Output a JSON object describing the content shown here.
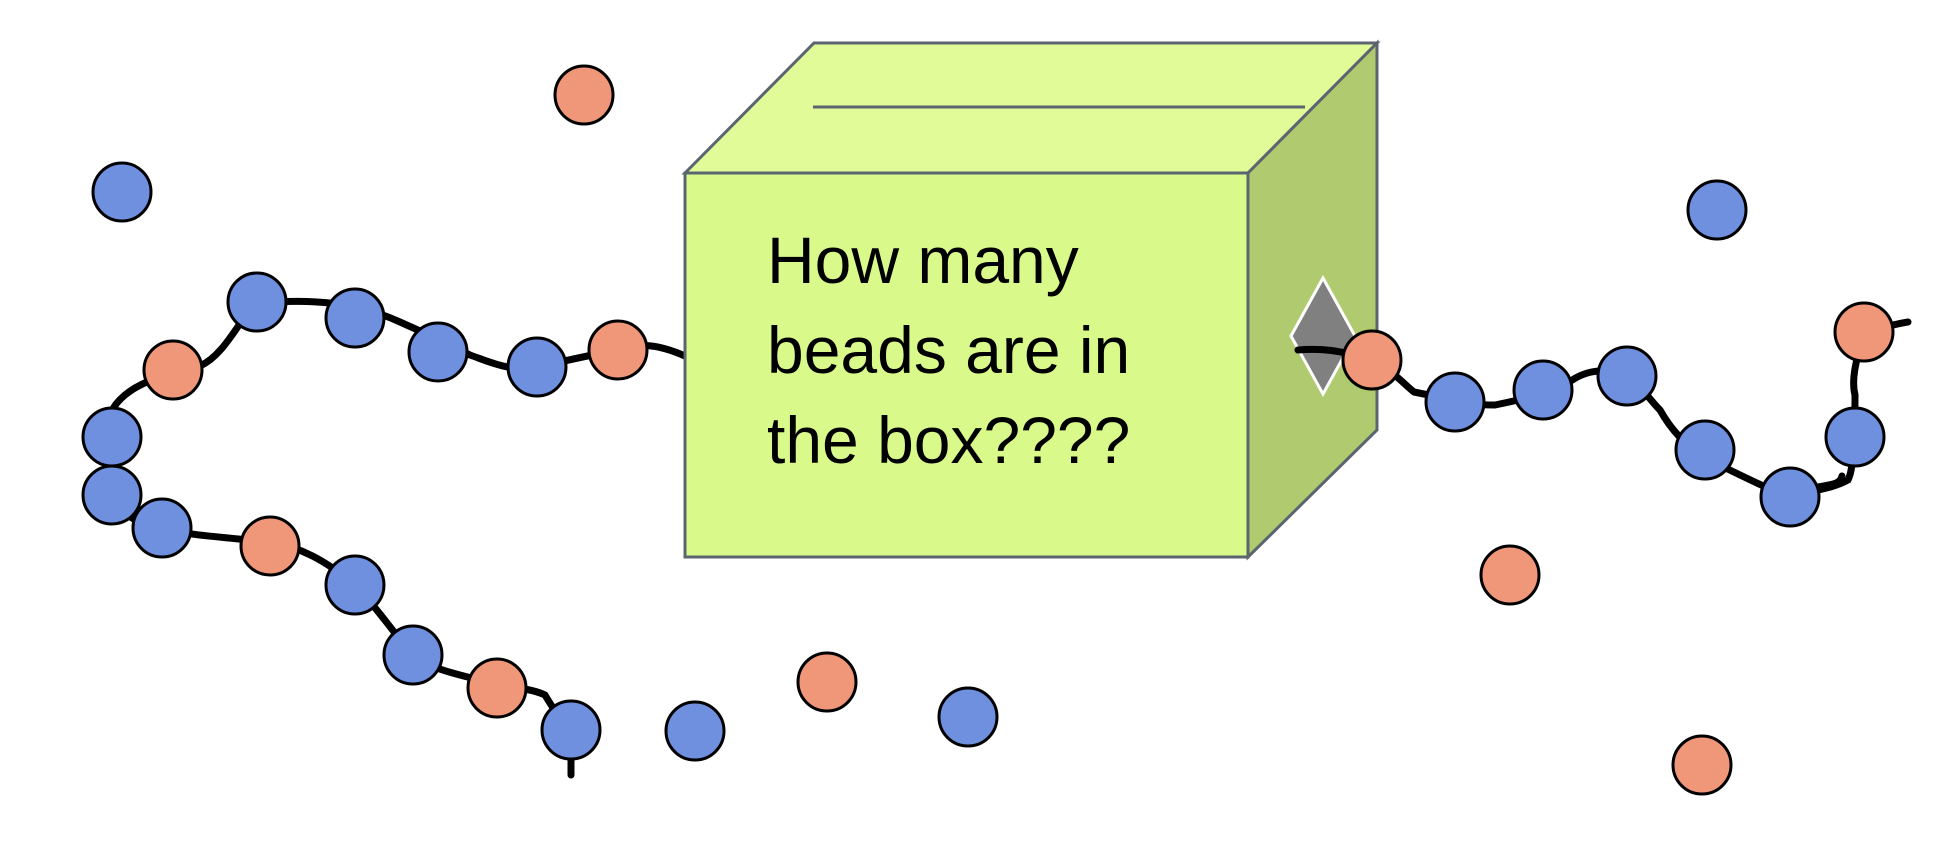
{
  "box": {
    "lines": [
      "How many",
      "beads are in",
      "the box????"
    ],
    "front_color": "#d9f98b",
    "top_color": "#e1fb99",
    "side_color": "#b0ca6f",
    "edge_color": "#5b6570"
  },
  "beads": {
    "blue_color": "#6f8fdf",
    "orange_color": "#f0977a",
    "string_color": "#000000",
    "diamond_color": "#808080"
  }
}
